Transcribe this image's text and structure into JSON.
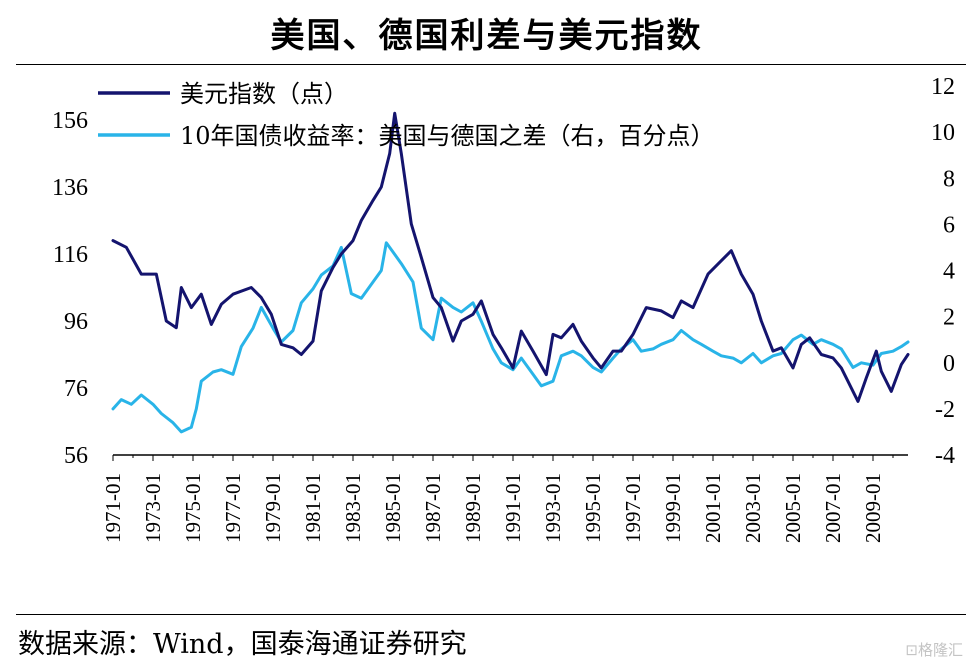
{
  "title": "美国、德国利差与美元指数",
  "source": "数据来源：Wind，国泰海通证券研究",
  "watermark": "⊡格隆汇",
  "colors": {
    "dxy": "#14146e",
    "spread": "#29b4e8"
  },
  "chart_data": {
    "type": "line",
    "legend_position": "top-left",
    "grid": false,
    "y_left": {
      "lim": [
        56,
        156
      ],
      "ticks": [
        56,
        76,
        96,
        116,
        136,
        156
      ]
    },
    "y_right": {
      "lim": [
        -4,
        12
      ],
      "ticks": [
        -4,
        -2,
        0,
        2,
        4,
        6,
        8,
        10,
        12
      ]
    },
    "x_ticks": [
      "1971-01",
      "1973-01",
      "1975-01",
      "1977-01",
      "1979-01",
      "1981-01",
      "1983-01",
      "1985-01",
      "1987-01",
      "1989-01",
      "1991-01",
      "1993-01",
      "1995-01",
      "1997-01",
      "1999-01",
      "2001-01",
      "2003-01",
      "2005-01",
      "2007-01",
      "2009-01"
    ],
    "x_range": [
      "1971-01",
      "2010-10"
    ],
    "series": [
      {
        "name": "美元指数（点）",
        "axis": "left",
        "color_key": "dxy",
        "points": [
          [
            "1971-01",
            120
          ],
          [
            "1971-09",
            118
          ],
          [
            "1972-06",
            110
          ],
          [
            "1973-03",
            110
          ],
          [
            "1973-09",
            96
          ],
          [
            "1974-03",
            94
          ],
          [
            "1974-06",
            106
          ],
          [
            "1974-12",
            100
          ],
          [
            "1975-06",
            104
          ],
          [
            "1975-12",
            95
          ],
          [
            "1976-06",
            101
          ],
          [
            "1977-01",
            104
          ],
          [
            "1977-12",
            106
          ],
          [
            "1978-06",
            103
          ],
          [
            "1978-12",
            98
          ],
          [
            "1979-06",
            89
          ],
          [
            "1980-01",
            88
          ],
          [
            "1980-06",
            86
          ],
          [
            "1981-01",
            90
          ],
          [
            "1981-06",
            105
          ],
          [
            "1982-01",
            112
          ],
          [
            "1982-06",
            116
          ],
          [
            "1983-01",
            120
          ],
          [
            "1983-06",
            126
          ],
          [
            "1984-01",
            132
          ],
          [
            "1984-06",
            136
          ],
          [
            "1984-11",
            146
          ],
          [
            "1985-02",
            158
          ],
          [
            "1985-06",
            146
          ],
          [
            "1985-12",
            125
          ],
          [
            "1986-06",
            115
          ],
          [
            "1987-01",
            103
          ],
          [
            "1987-06",
            100
          ],
          [
            "1988-01",
            90
          ],
          [
            "1988-06",
            96
          ],
          [
            "1989-01",
            98
          ],
          [
            "1989-06",
            102
          ],
          [
            "1990-01",
            92
          ],
          [
            "1990-06",
            88
          ],
          [
            "1991-01",
            82
          ],
          [
            "1991-06",
            93
          ],
          [
            "1992-01",
            87
          ],
          [
            "1992-09",
            80
          ],
          [
            "1993-01",
            92
          ],
          [
            "1993-06",
            91
          ],
          [
            "1994-01",
            95
          ],
          [
            "1994-06",
            90
          ],
          [
            "1995-01",
            85
          ],
          [
            "1995-06",
            82
          ],
          [
            "1996-01",
            87
          ],
          [
            "1996-06",
            87
          ],
          [
            "1997-01",
            92
          ],
          [
            "1997-09",
            100
          ],
          [
            "1998-06",
            99
          ],
          [
            "1999-01",
            97
          ],
          [
            "1999-06",
            102
          ],
          [
            "2000-01",
            100
          ],
          [
            "2000-10",
            110
          ],
          [
            "2001-06",
            114
          ],
          [
            "2001-12",
            117
          ],
          [
            "2002-06",
            110
          ],
          [
            "2003-01",
            104
          ],
          [
            "2003-06",
            96
          ],
          [
            "2004-01",
            87
          ],
          [
            "2004-06",
            88
          ],
          [
            "2005-01",
            82
          ],
          [
            "2005-06",
            89
          ],
          [
            "2005-11",
            91
          ],
          [
            "2006-06",
            86
          ],
          [
            "2007-01",
            85
          ],
          [
            "2007-06",
            82
          ],
          [
            "2008-01",
            75
          ],
          [
            "2008-04",
            72
          ],
          [
            "2008-09",
            79
          ],
          [
            "2009-03",
            87
          ],
          [
            "2009-06",
            81
          ],
          [
            "2009-12",
            75
          ],
          [
            "2010-06",
            83
          ],
          [
            "2010-10",
            86
          ]
        ]
      },
      {
        "name": "10年国债收益率：美国与德国之差（右，百分点）",
        "axis": "right",
        "color_key": "spread",
        "points": [
          [
            "1971-01",
            -2.0
          ],
          [
            "1971-06",
            -1.6
          ],
          [
            "1971-12",
            -1.8
          ],
          [
            "1972-06",
            -1.4
          ],
          [
            "1973-01",
            -1.8
          ],
          [
            "1973-06",
            -2.2
          ],
          [
            "1974-01",
            -2.6
          ],
          [
            "1974-06",
            -3.0
          ],
          [
            "1974-12",
            -2.8
          ],
          [
            "1975-03",
            -2.0
          ],
          [
            "1975-06",
            -0.8
          ],
          [
            "1976-01",
            -0.4
          ],
          [
            "1976-06",
            -0.3
          ],
          [
            "1977-01",
            -0.5
          ],
          [
            "1977-06",
            0.7
          ],
          [
            "1978-01",
            1.5
          ],
          [
            "1978-06",
            2.4
          ],
          [
            "1979-01",
            1.5
          ],
          [
            "1979-06",
            0.9
          ],
          [
            "1980-01",
            1.4
          ],
          [
            "1980-06",
            2.6
          ],
          [
            "1981-01",
            3.2
          ],
          [
            "1981-06",
            3.8
          ],
          [
            "1982-01",
            4.2
          ],
          [
            "1982-06",
            5.0
          ],
          [
            "1982-12",
            3.0
          ],
          [
            "1983-06",
            2.8
          ],
          [
            "1984-01",
            3.5
          ],
          [
            "1984-06",
            4.0
          ],
          [
            "1984-09",
            5.2
          ],
          [
            "1985-01",
            4.8
          ],
          [
            "1985-06",
            4.3
          ],
          [
            "1986-01",
            3.5
          ],
          [
            "1986-06",
            1.5
          ],
          [
            "1987-01",
            1.0
          ],
          [
            "1987-06",
            2.8
          ],
          [
            "1988-01",
            2.4
          ],
          [
            "1988-06",
            2.2
          ],
          [
            "1989-01",
            2.6
          ],
          [
            "1989-06",
            1.8
          ],
          [
            "1990-01",
            0.6
          ],
          [
            "1990-06",
            0.0
          ],
          [
            "1991-01",
            -0.3
          ],
          [
            "1991-06",
            0.2
          ],
          [
            "1992-01",
            -0.5
          ],
          [
            "1992-06",
            -1.0
          ],
          [
            "1993-01",
            -0.8
          ],
          [
            "1993-06",
            0.3
          ],
          [
            "1994-01",
            0.5
          ],
          [
            "1994-06",
            0.3
          ],
          [
            "1995-01",
            -0.2
          ],
          [
            "1995-06",
            -0.4
          ],
          [
            "1996-01",
            0.2
          ],
          [
            "1996-06",
            0.6
          ],
          [
            "1997-01",
            1.0
          ],
          [
            "1997-06",
            0.5
          ],
          [
            "1998-01",
            0.6
          ],
          [
            "1998-06",
            0.8
          ],
          [
            "1999-01",
            1.0
          ],
          [
            "1999-06",
            1.4
          ],
          [
            "2000-01",
            1.0
          ],
          [
            "2000-06",
            0.8
          ],
          [
            "2001-01",
            0.5
          ],
          [
            "2001-06",
            0.3
          ],
          [
            "2002-01",
            0.2
          ],
          [
            "2002-06",
            0.0
          ],
          [
            "2003-01",
            0.4
          ],
          [
            "2003-06",
            0.0
          ],
          [
            "2004-01",
            0.3
          ],
          [
            "2004-06",
            0.4
          ],
          [
            "2005-01",
            1.0
          ],
          [
            "2005-06",
            1.2
          ],
          [
            "2006-01",
            0.8
          ],
          [
            "2006-06",
            1.0
          ],
          [
            "2007-01",
            0.8
          ],
          [
            "2007-06",
            0.6
          ],
          [
            "2008-01",
            -0.2
          ],
          [
            "2008-06",
            0.0
          ],
          [
            "2009-01",
            -0.1
          ],
          [
            "2009-06",
            0.4
          ],
          [
            "2010-01",
            0.5
          ],
          [
            "2010-06",
            0.7
          ],
          [
            "2010-10",
            0.9
          ]
        ]
      }
    ]
  }
}
